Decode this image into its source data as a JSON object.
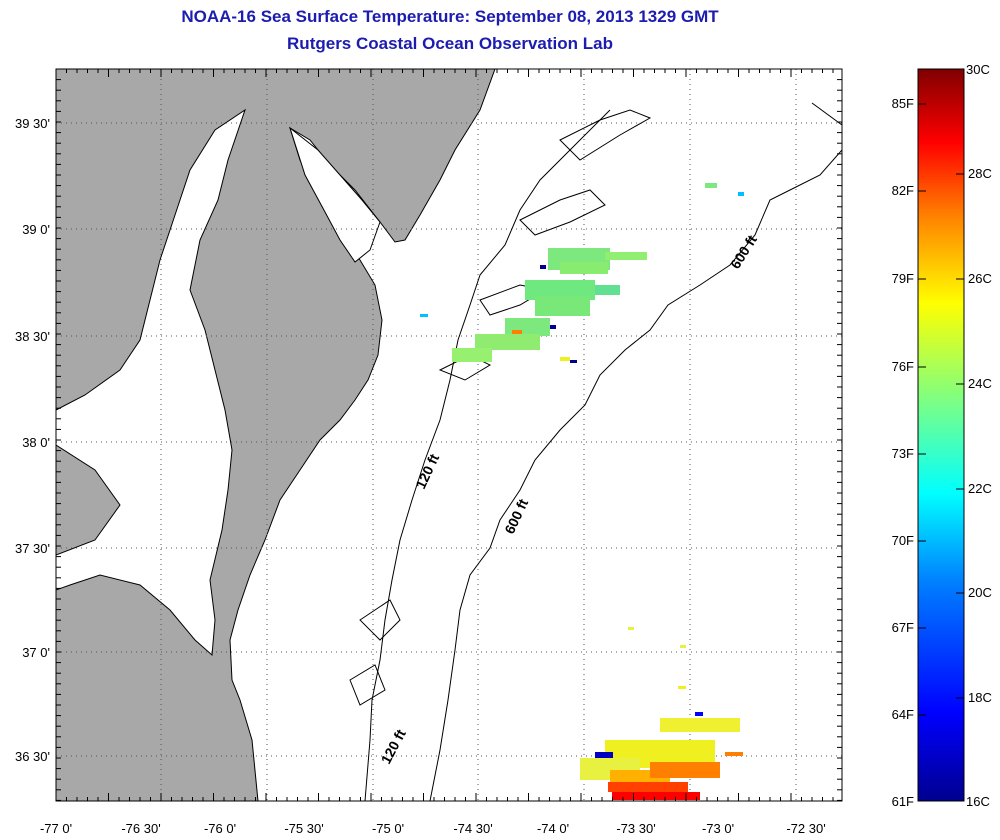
{
  "header": {
    "title": "NOAA-16 Sea Surface Temperature:  September 08, 2013 1329 GMT",
    "subtitle": "Rutgers Coastal Ocean Observation Lab"
  },
  "map": {
    "x_ticks": [
      "-77 0'",
      "-76 30'",
      "-76 0'",
      "-75 30'",
      "-75 0'",
      "-74 30'",
      "-74 0'",
      "-73 30'",
      "-73 0'",
      "-72 30'"
    ],
    "y_ticks": [
      "39 30'",
      "39 0'",
      "38 30'",
      "38 0'",
      "37 30'",
      "37 0'",
      "36 30'"
    ],
    "lon_range": [
      -77.0,
      -72.0
    ],
    "lat_range": [
      36.2,
      39.8
    ],
    "grid": "dotted",
    "contour_labels": [
      "600 ft",
      "120 ft",
      "600 ft",
      "120 ft"
    ]
  },
  "colorbar": {
    "fahrenheit_labels": [
      "85F",
      "82F",
      "79F",
      "76F",
      "73F",
      "70F",
      "67F",
      "64F",
      "61F"
    ],
    "celsius_labels": [
      "30C",
      "28C",
      "26C",
      "24C",
      "22C",
      "20C",
      "18C",
      "16C"
    ],
    "range_c": [
      16,
      30
    ],
    "colors": [
      "#00008f",
      "#0000ff",
      "#0080ff",
      "#00ffff",
      "#80ff80",
      "#ffff00",
      "#ff8000",
      "#ff0000",
      "#800000"
    ]
  },
  "colors": {
    "land": "#a8a8a8",
    "water": "#ffffff",
    "title": "#1c1cb0"
  }
}
